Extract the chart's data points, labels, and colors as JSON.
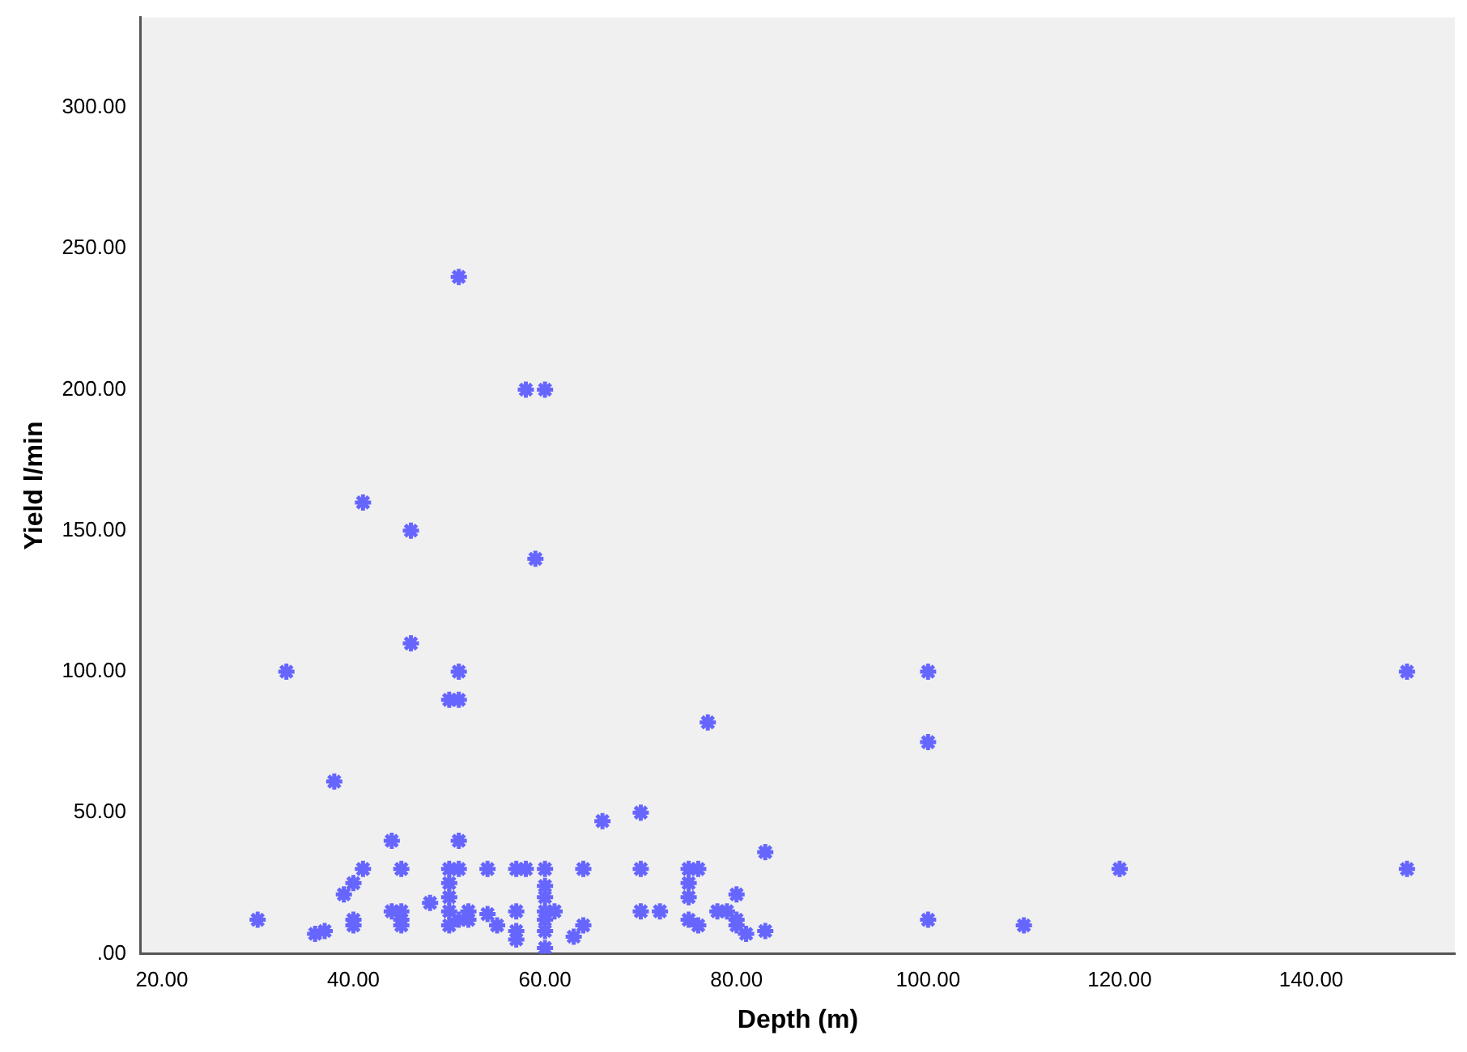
{
  "chart_data": {
    "type": "scatter",
    "xlabel": "Depth (m)",
    "ylabel": "Yield l/min",
    "x": [
      30,
      33,
      36,
      37,
      38,
      39,
      40,
      40,
      40,
      41,
      41,
      44,
      44,
      45,
      45,
      45,
      45,
      46,
      46,
      48,
      50,
      51,
      51,
      51,
      51,
      50,
      51,
      50,
      50,
      50,
      51,
      50,
      52,
      52,
      54,
      54,
      55,
      57,
      58,
      57,
      57,
      57,
      58,
      60,
      59,
      60,
      60,
      60,
      60,
      60,
      60,
      60,
      61,
      63,
      64,
      64,
      66,
      70,
      70,
      70,
      72,
      75,
      76,
      75,
      75,
      75,
      76,
      77,
      78,
      79,
      80,
      80,
      80,
      81,
      83,
      83,
      100,
      100,
      100,
      110,
      120,
      150,
      150
    ],
    "values": [
      12,
      100,
      7,
      8,
      61,
      21,
      25,
      12,
      10,
      30,
      160,
      40,
      15,
      15,
      30,
      12,
      10,
      150,
      110,
      18,
      90,
      90,
      100,
      240,
      40,
      30,
      30,
      25,
      20,
      15,
      12,
      10,
      15,
      12,
      30,
      14,
      10,
      30,
      30,
      15,
      8,
      5,
      200,
      200,
      140,
      30,
      24,
      20,
      15,
      12,
      8,
      2,
      15,
      6,
      10,
      30,
      47,
      50,
      30,
      15,
      15,
      30,
      30,
      25,
      20,
      12,
      10,
      82,
      15,
      15,
      21,
      12,
      10,
      7,
      36,
      8,
      100,
      75,
      12,
      10,
      30,
      100,
      30
    ],
    "color": "#6666ff",
    "marker": "cross",
    "grid": false,
    "xlim": [
      17.8,
      155
    ],
    "ylim": [
      0,
      332
    ],
    "xticks": [
      {
        "value": 20,
        "label": "20.00"
      },
      {
        "value": 40,
        "label": "40.00"
      },
      {
        "value": 60,
        "label": "60.00"
      },
      {
        "value": 80,
        "label": "80.00"
      },
      {
        "value": 100,
        "label": "100.00"
      },
      {
        "value": 120,
        "label": "120.00"
      },
      {
        "value": 140,
        "label": "140.00"
      }
    ],
    "yticks": [
      {
        "value": 0,
        "label": ".00"
      },
      {
        "value": 50,
        "label": "50.00"
      },
      {
        "value": 100,
        "label": "100.00"
      },
      {
        "value": 150,
        "label": "150.00"
      },
      {
        "value": 200,
        "label": "200.00"
      },
      {
        "value": 250,
        "label": "250.00"
      },
      {
        "value": 300,
        "label": "300.00"
      }
    ]
  }
}
